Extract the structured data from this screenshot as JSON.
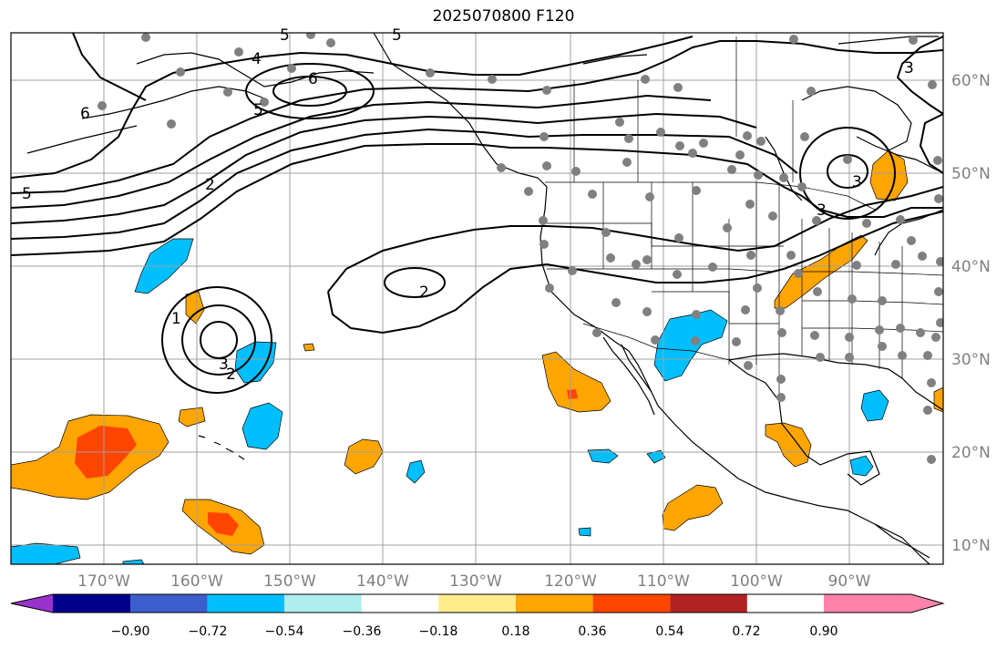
{
  "title": "2025070800 F120",
  "map": {
    "lat_labels": [
      "60°N",
      "50°N",
      "40°N",
      "30°N",
      "20°N",
      "10°N"
    ],
    "lon_labels": [
      "170°W",
      "160°W",
      "150°W",
      "140°W",
      "130°W",
      "120°W",
      "110°W",
      "100°W",
      "90°W"
    ],
    "contour_labels": [
      "5",
      "5",
      "4",
      "6",
      "5",
      "6",
      "3",
      "2",
      "5",
      "3",
      "3",
      "2",
      "1",
      "3",
      "2"
    ]
  },
  "colorbar": {
    "ticks": [
      "−0.90",
      "−0.72",
      "−0.54",
      "−0.36",
      "−0.18",
      "0.18",
      "0.36",
      "0.54",
      "0.72",
      "0.90"
    ],
    "colors": [
      "#9932cc",
      "#00008b",
      "#3a5fcd",
      "#00bfff",
      "#afeeee",
      "#ffffff",
      "#ffec8b",
      "#ffa500",
      "#ff4500",
      "#b22222",
      "#ff82ab"
    ]
  },
  "colors": {
    "land_line": "#000000",
    "grid": "#a0a0a0",
    "station": "#808080"
  }
}
